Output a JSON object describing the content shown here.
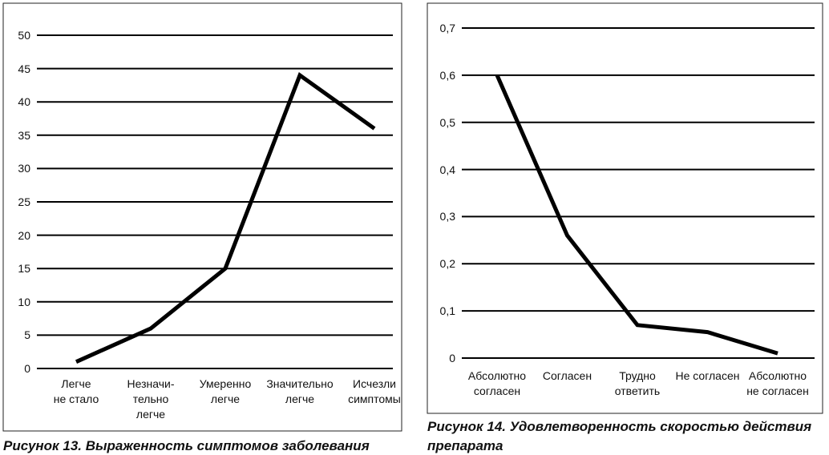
{
  "chart_data": [
    {
      "type": "line",
      "title": "Рисунок 13. Выраженность симптомов заболевания",
      "categories": [
        "Легче\nне стало",
        "Незначи-\nтельно\nлегче",
        "Умеренно\nлегче",
        "Значительно\nлегче",
        "Исчезли\nсимптомы"
      ],
      "values": [
        1,
        6,
        15,
        44,
        36
      ],
      "color": "#000000",
      "ylim": [
        0,
        50
      ],
      "yticks": [
        0,
        5,
        10,
        15,
        20,
        25,
        30,
        35,
        40,
        45,
        50
      ],
      "grid": true
    },
    {
      "type": "line",
      "title": "Рисунок 14. Удовлетворенность скоростью действия препарата",
      "categories": [
        "Абсолютно\nсогласен",
        "Согласен",
        "Трудно\nответить",
        "Не согласен",
        "Абсолютно\nне согласен"
      ],
      "values": [
        0.6,
        0.26,
        0.07,
        0.055,
        0.01
      ],
      "color": "#000000",
      "ylim": [
        0,
        0.7
      ],
      "yticks": [
        0,
        {
          "value": 0.1,
          "label": "0,1"
        },
        {
          "value": 0.2,
          "label": "0,2"
        },
        {
          "value": 0.3,
          "label": "0,3"
        },
        {
          "value": 0.4,
          "label": "0,4"
        },
        {
          "value": 0.5,
          "label": "0,5"
        },
        {
          "value": 0.6,
          "label": "0,6"
        },
        {
          "value": 0.7,
          "label": "0,7"
        }
      ],
      "grid": true
    }
  ]
}
